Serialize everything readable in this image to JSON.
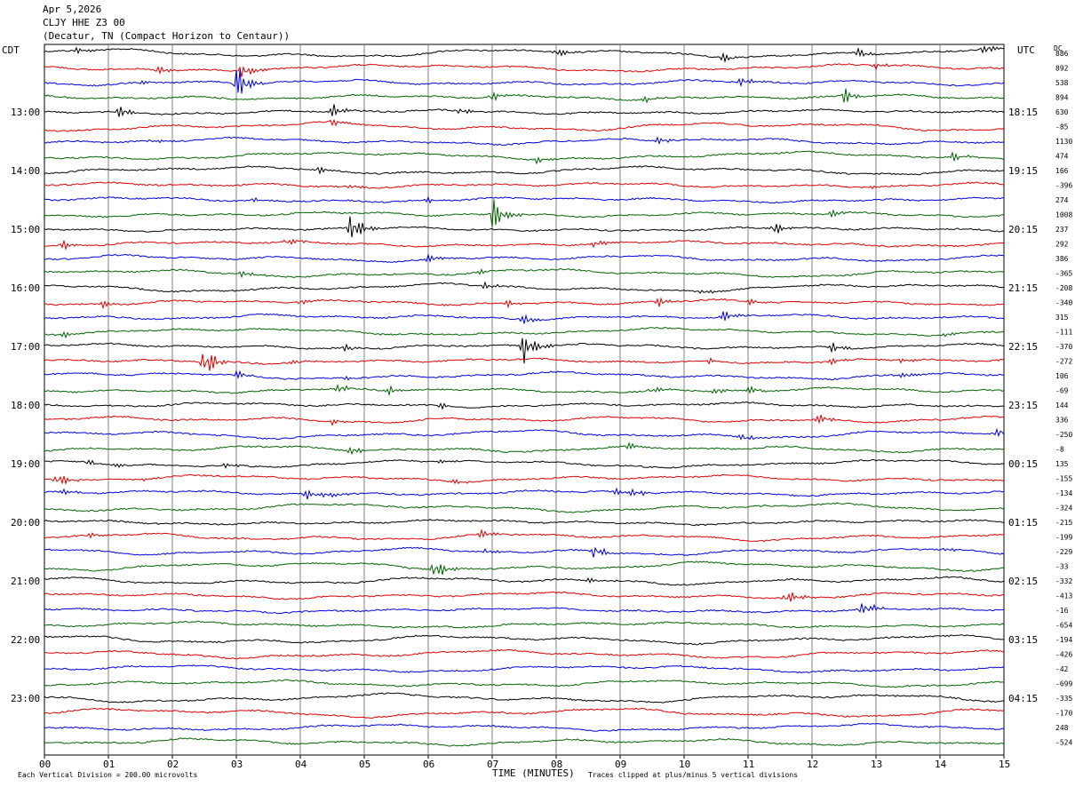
{
  "header": {
    "date": "Apr 5,2026",
    "station": "CLJY HHE Z3 00",
    "location": "(Decatur, TN (Compact Horizon to Centaur))"
  },
  "axes": {
    "left_label": "CDT",
    "right_label": "UTC",
    "dc_label": "DC",
    "x_title": "TIME (MINUTES)",
    "x_ticks": [
      "00",
      "01",
      "02",
      "03",
      "04",
      "05",
      "06",
      "07",
      "08",
      "09",
      "10",
      "11",
      "12",
      "13",
      "14",
      "15"
    ]
  },
  "footer": {
    "division_note": "Each Vertical Division =  200.00 microvolts",
    "clip_note": "Traces clipped at plus/minus 5 vertical divisions"
  },
  "chart_data": {
    "type": "line",
    "title": "",
    "xlabel": "TIME (MINUTES)",
    "xlim": [
      0,
      15
    ],
    "trace_count": 48,
    "trace_colors": [
      "#000000",
      "#e00000",
      "#0000e0",
      "#006400"
    ],
    "left_hour_labels": [
      "13:00",
      "14:00",
      "15:00",
      "16:00",
      "17:00",
      "18:00",
      "19:00",
      "20:00",
      "21:00",
      "22:00",
      "23:00"
    ],
    "right_hour_labels": [
      "18:15",
      "19:15",
      "20:15",
      "21:15",
      "22:15",
      "23:15",
      "00:15",
      "01:15",
      "02:15",
      "03:15",
      "04:15"
    ],
    "dc_offsets": [
      "886",
      "892",
      "538",
      "894",
      "630",
      "-85",
      "1130",
      "474",
      "166",
      "-396",
      "274",
      "1008",
      "237",
      "292",
      "386",
      "-365",
      "-208",
      "-340",
      "315",
      "-111",
      "-370",
      "-272",
      "106",
      "-69",
      "144",
      "336",
      "-250",
      "-8",
      "135",
      "-155",
      "-134",
      "-324",
      "-215",
      "-199",
      "-229",
      "-33",
      "-332",
      "-413",
      "-16",
      "-654",
      "-194",
      "-426",
      "-42",
      "-699",
      "-335",
      "-170",
      "248",
      "-524"
    ],
    "events": [
      {
        "trace": 0,
        "minute": 0.5,
        "amp": 3
      },
      {
        "trace": 0,
        "minute": 8.0,
        "amp": 5
      },
      {
        "trace": 0,
        "minute": 10.6,
        "amp": 5
      },
      {
        "trace": 0,
        "minute": 12.7,
        "amp": 6
      },
      {
        "trace": 0,
        "minute": 14.7,
        "amp": 5
      },
      {
        "trace": 1,
        "minute": 1.8,
        "amp": 5
      },
      {
        "trace": 1,
        "minute": 3.1,
        "amp": 9
      },
      {
        "trace": 1,
        "minute": 13.0,
        "amp": 4
      },
      {
        "trace": 2,
        "minute": 1.5,
        "amp": 3
      },
      {
        "trace": 2,
        "minute": 3.0,
        "amp": 22
      },
      {
        "trace": 2,
        "minute": 10.9,
        "amp": 5
      },
      {
        "trace": 3,
        "minute": 7.0,
        "amp": 5
      },
      {
        "trace": 3,
        "minute": 12.5,
        "amp": 9
      },
      {
        "trace": 3,
        "minute": 9.4,
        "amp": 4
      },
      {
        "trace": 4,
        "minute": 1.2,
        "amp": 8
      },
      {
        "trace": 4,
        "minute": 4.5,
        "amp": 8
      },
      {
        "trace": 4,
        "minute": 6.5,
        "amp": 4
      },
      {
        "trace": 5,
        "minute": 4.5,
        "amp": 4
      },
      {
        "trace": 6,
        "minute": 1.7,
        "amp": 3
      },
      {
        "trace": 6,
        "minute": 9.6,
        "amp": 4
      },
      {
        "trace": 7,
        "minute": 7.7,
        "amp": 4
      },
      {
        "trace": 7,
        "minute": 14.2,
        "amp": 5
      },
      {
        "trace": 8,
        "minute": 4.3,
        "amp": 4
      },
      {
        "trace": 9,
        "minute": 4.8,
        "amp": 4
      },
      {
        "trace": 9,
        "minute": 12.9,
        "amp": 3
      },
      {
        "trace": 10,
        "minute": 3.3,
        "amp": 3
      },
      {
        "trace": 10,
        "minute": 6.0,
        "amp": 3
      },
      {
        "trace": 11,
        "minute": 7.0,
        "amp": 22
      },
      {
        "trace": 11,
        "minute": 12.3,
        "amp": 5
      },
      {
        "trace": 12,
        "minute": 4.8,
        "amp": 18
      },
      {
        "trace": 12,
        "minute": 11.4,
        "amp": 8
      },
      {
        "trace": 13,
        "minute": 0.3,
        "amp": 5
      },
      {
        "trace": 13,
        "minute": 3.8,
        "amp": 4
      },
      {
        "trace": 13,
        "minute": 8.6,
        "amp": 5
      },
      {
        "trace": 14,
        "minute": 6.0,
        "amp": 4
      },
      {
        "trace": 15,
        "minute": 3.1,
        "amp": 4
      },
      {
        "trace": 15,
        "minute": 6.8,
        "amp": 3
      },
      {
        "trace": 16,
        "minute": 6.9,
        "amp": 4
      },
      {
        "trace": 16,
        "minute": 10.3,
        "amp": 5
      },
      {
        "trace": 17,
        "minute": 0.9,
        "amp": 4
      },
      {
        "trace": 17,
        "minute": 4.0,
        "amp": 4
      },
      {
        "trace": 17,
        "minute": 7.2,
        "amp": 5
      },
      {
        "trace": 17,
        "minute": 9.6,
        "amp": 6
      },
      {
        "trace": 17,
        "minute": 11.0,
        "amp": 5
      },
      {
        "trace": 18,
        "minute": 7.5,
        "amp": 5
      },
      {
        "trace": 18,
        "minute": 10.6,
        "amp": 7
      },
      {
        "trace": 19,
        "minute": 0.3,
        "amp": 3
      },
      {
        "trace": 19,
        "minute": 14.1,
        "amp": 4
      },
      {
        "trace": 20,
        "minute": 4.7,
        "amp": 4
      },
      {
        "trace": 20,
        "minute": 7.5,
        "amp": 20
      },
      {
        "trace": 20,
        "minute": 12.3,
        "amp": 6
      },
      {
        "trace": 21,
        "minute": 2.5,
        "amp": 20
      },
      {
        "trace": 21,
        "minute": 3.8,
        "amp": 4
      },
      {
        "trace": 21,
        "minute": 10.4,
        "amp": 3
      },
      {
        "trace": 21,
        "minute": 12.3,
        "amp": 4
      },
      {
        "trace": 21,
        "minute": 13.4,
        "amp": 4
      },
      {
        "trace": 22,
        "minute": 3.0,
        "amp": 4
      },
      {
        "trace": 22,
        "minute": 4.7,
        "amp": 3
      },
      {
        "trace": 22,
        "minute": 13.4,
        "amp": 3
      },
      {
        "trace": 23,
        "minute": 4.6,
        "amp": 6
      },
      {
        "trace": 23,
        "minute": 5.4,
        "amp": 5
      },
      {
        "trace": 23,
        "minute": 9.5,
        "amp": 4
      },
      {
        "trace": 23,
        "minute": 10.5,
        "amp": 5
      },
      {
        "trace": 23,
        "minute": 11.0,
        "amp": 6
      },
      {
        "trace": 24,
        "minute": 6.2,
        "amp": 4
      },
      {
        "trace": 25,
        "minute": 4.5,
        "amp": 4
      },
      {
        "trace": 25,
        "minute": 12.1,
        "amp": 5
      },
      {
        "trace": 26,
        "minute": 10.9,
        "amp": 4
      },
      {
        "trace": 26,
        "minute": 14.9,
        "amp": 6
      },
      {
        "trace": 27,
        "minute": 4.8,
        "amp": 5
      },
      {
        "trace": 27,
        "minute": 9.1,
        "amp": 6
      },
      {
        "trace": 28,
        "minute": 0.7,
        "amp": 3
      },
      {
        "trace": 28,
        "minute": 1.1,
        "amp": 3
      },
      {
        "trace": 28,
        "minute": 2.8,
        "amp": 3
      },
      {
        "trace": 28,
        "minute": 6.2,
        "amp": 3
      },
      {
        "trace": 28,
        "minute": 12.0,
        "amp": 3
      },
      {
        "trace": 29,
        "minute": 0.2,
        "amp": 7
      },
      {
        "trace": 29,
        "minute": 1.5,
        "amp": 3
      },
      {
        "trace": 29,
        "minute": 6.4,
        "amp": 4
      },
      {
        "trace": 30,
        "minute": 0.3,
        "amp": 3
      },
      {
        "trace": 30,
        "minute": 4.1,
        "amp": 5
      },
      {
        "trace": 30,
        "minute": 4.4,
        "amp": 4
      },
      {
        "trace": 30,
        "minute": 8.9,
        "amp": 4
      },
      {
        "trace": 30,
        "minute": 9.2,
        "amp": 5
      },
      {
        "trace": 33,
        "minute": 0.7,
        "amp": 3
      },
      {
        "trace": 33,
        "minute": 6.8,
        "amp": 6
      },
      {
        "trace": 34,
        "minute": 6.9,
        "amp": 3
      },
      {
        "trace": 34,
        "minute": 8.6,
        "amp": 9
      },
      {
        "trace": 34,
        "minute": 14.1,
        "amp": 3
      },
      {
        "trace": 35,
        "minute": 6.1,
        "amp": 13
      },
      {
        "trace": 36,
        "minute": 8.5,
        "amp": 3
      },
      {
        "trace": 37,
        "minute": 11.6,
        "amp": 9
      },
      {
        "trace": 38,
        "minute": 12.8,
        "amp": 9
      }
    ]
  }
}
